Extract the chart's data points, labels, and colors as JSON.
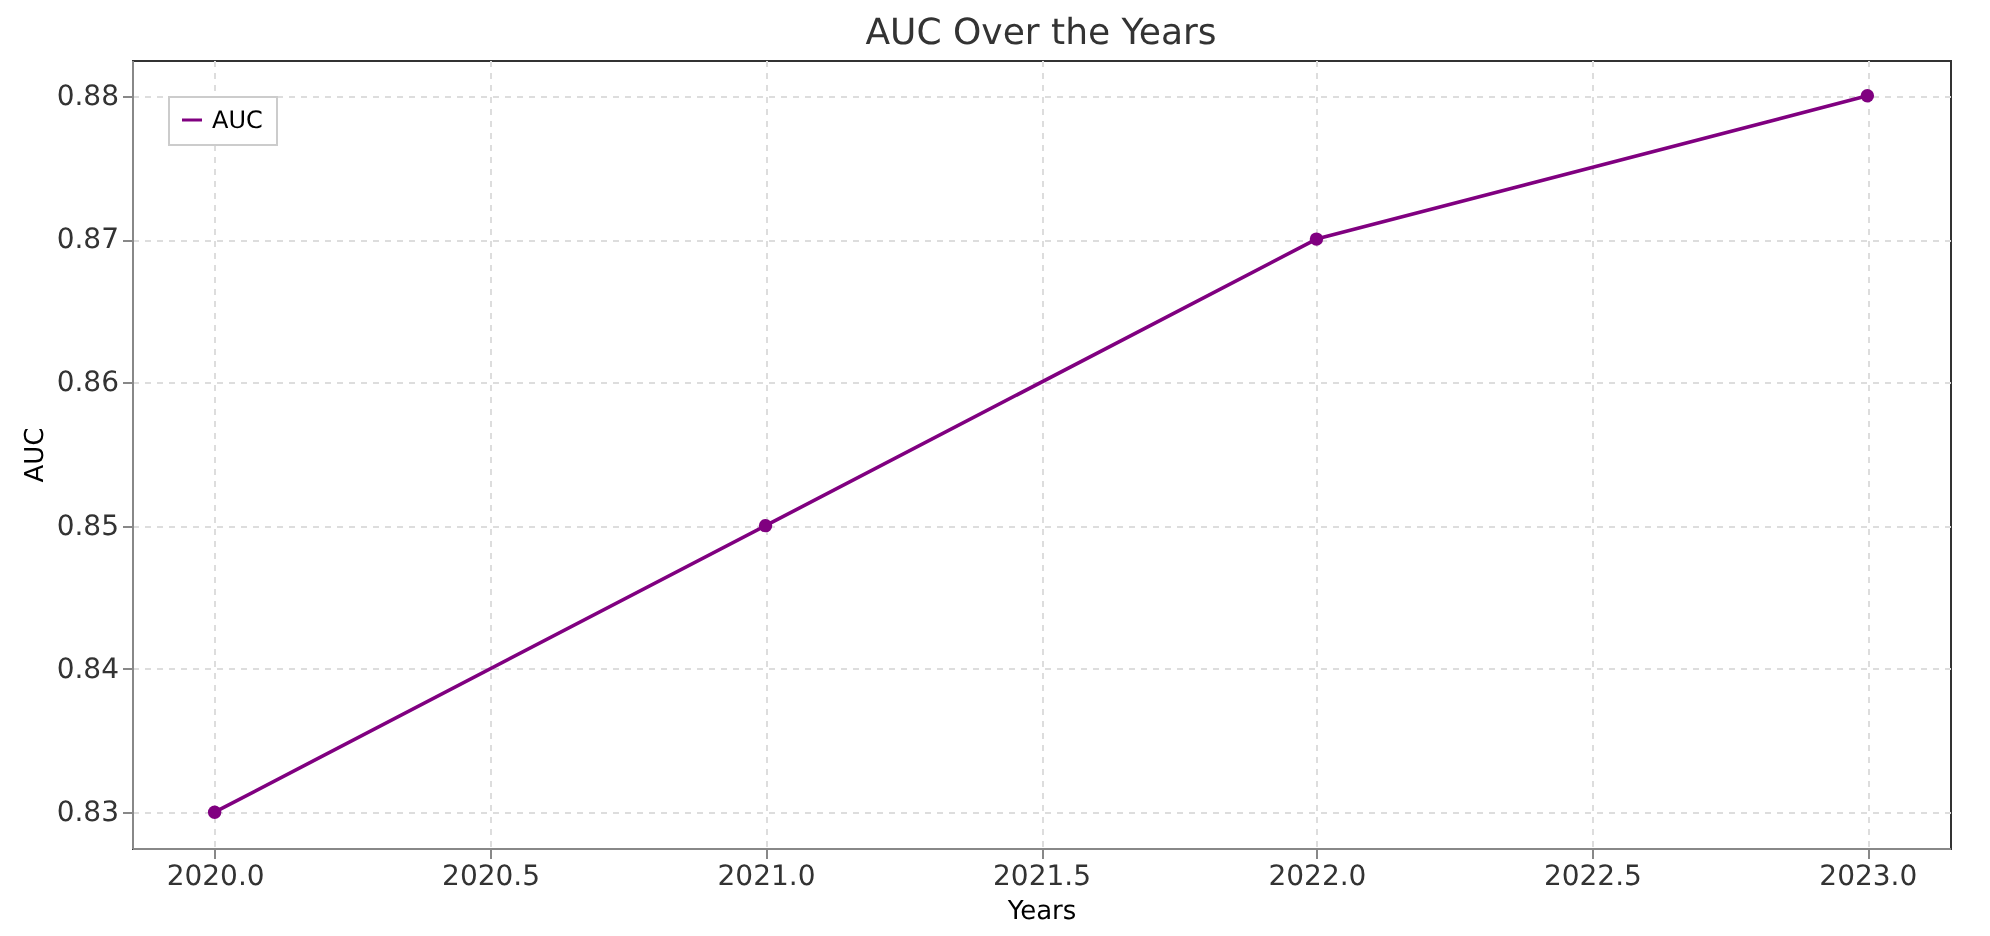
{
  "chart_data": {
    "type": "line",
    "title": "AUC Over the Years",
    "xlabel": "Years",
    "ylabel": "AUC",
    "x": [
      2020,
      2021,
      2022,
      2023
    ],
    "series": [
      {
        "name": "AUC",
        "color": "#800080",
        "values": [
          0.83,
          0.85,
          0.87,
          0.88
        ]
      }
    ],
    "xlim": [
      2019.85,
      2023.15
    ],
    "xticks": [
      {
        "value": 2020,
        "label": "2020.0"
      },
      {
        "value": 2020.5,
        "label": "2020.5"
      },
      {
        "value": 2021,
        "label": "2021.0"
      },
      {
        "value": 2021.5,
        "label": "2021.5"
      },
      {
        "value": 2022,
        "label": "2022.0"
      },
      {
        "value": 2022.5,
        "label": "2022.5"
      },
      {
        "value": 2023,
        "label": "2023.0"
      }
    ],
    "ylim": [
      0.8275,
      0.8825
    ],
    "yticks": [
      0.83,
      0.84,
      0.85,
      0.86,
      0.87,
      0.88
    ],
    "grid": true,
    "legend": "top left",
    "marker": "circle",
    "line_style": "solid"
  }
}
